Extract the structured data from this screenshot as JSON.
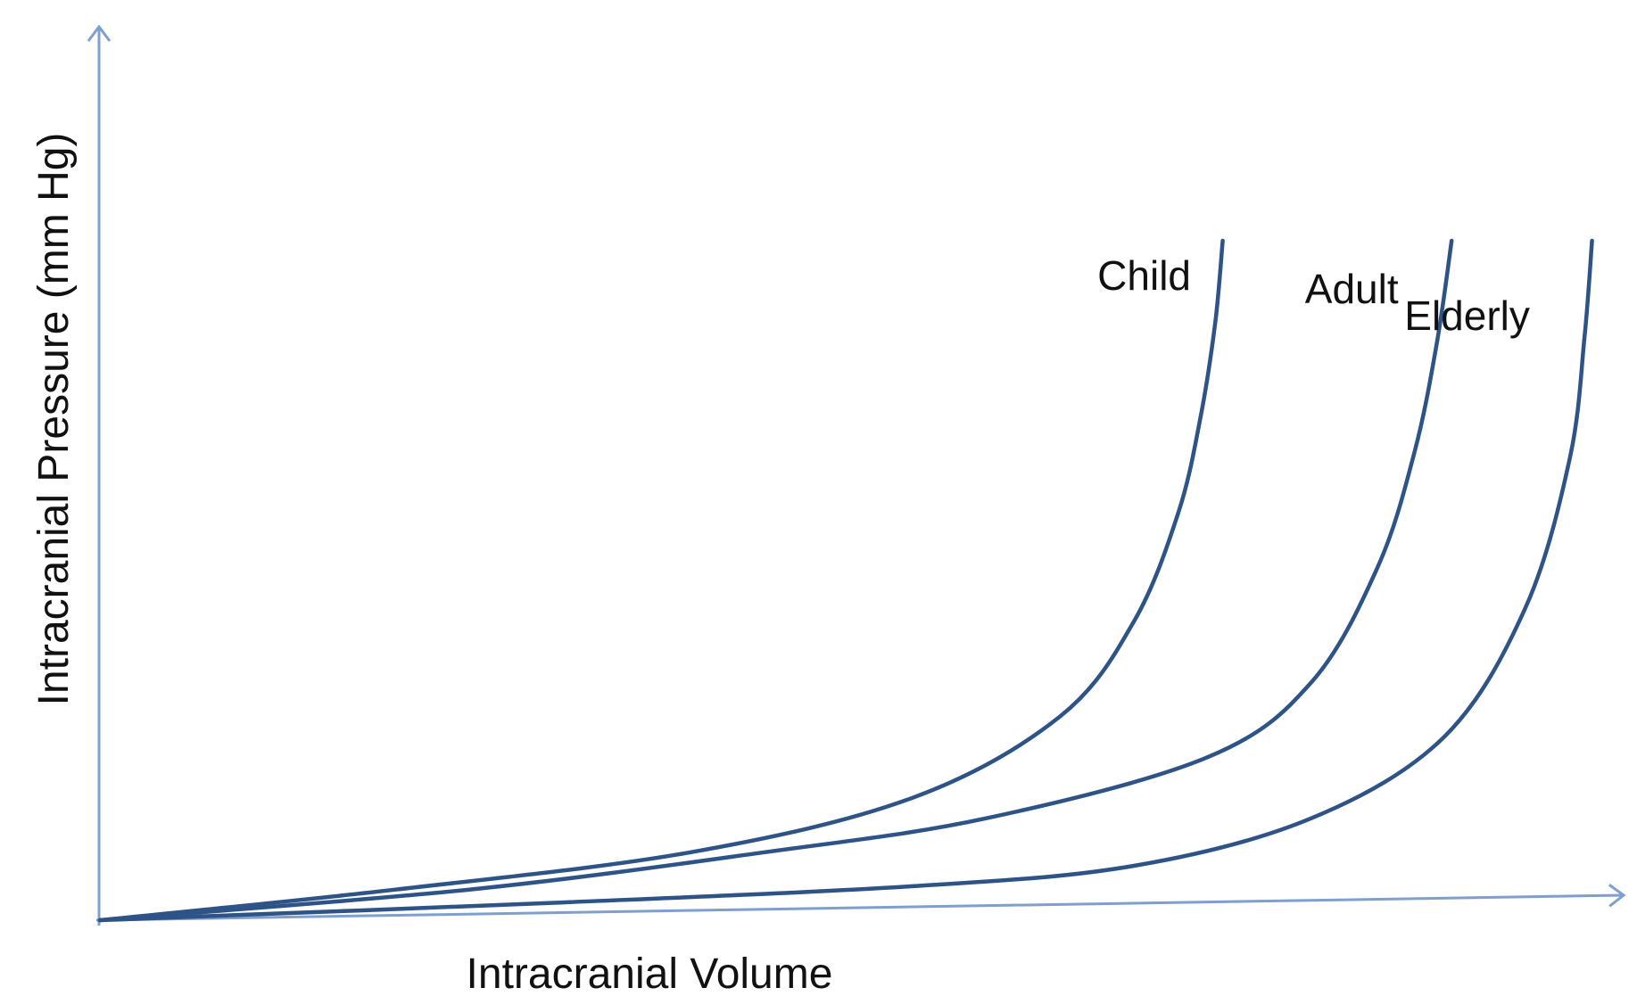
{
  "chart_data": {
    "type": "line",
    "title": "",
    "xlabel": "Intracranial Volume",
    "ylabel": "Intracranial Pressure (mm Hg)",
    "x_ticks_shown": false,
    "y_ticks_shown": false,
    "grid": false,
    "xlim": [
      0,
      100
    ],
    "ylim": [
      0,
      100
    ],
    "series": [
      {
        "name": "Child",
        "color": "#2e5386",
        "x": [
          0,
          20,
          40,
          55,
          65,
          70,
          73,
          74.5,
          75.5,
          76
        ],
        "y": [
          0,
          4.5,
          10,
          18,
          30,
          44,
          60,
          74,
          88,
          100
        ]
      },
      {
        "name": "Adult",
        "color": "#2e5386",
        "x": [
          0,
          25,
          45,
          60,
          75,
          82,
          86.5,
          89,
          90.5,
          91.5
        ],
        "y": [
          0,
          4.5,
          10,
          15,
          24,
          35,
          52,
          69,
          85,
          100
        ]
      },
      {
        "name": "Elderly",
        "color": "#2e5386",
        "x": [
          0,
          30,
          55,
          70,
          82,
          91,
          96.5,
          99.5,
          100.5,
          101
        ],
        "y": [
          0,
          2.5,
          5,
          8,
          15,
          27,
          46,
          68,
          86,
          100
        ]
      }
    ]
  }
}
